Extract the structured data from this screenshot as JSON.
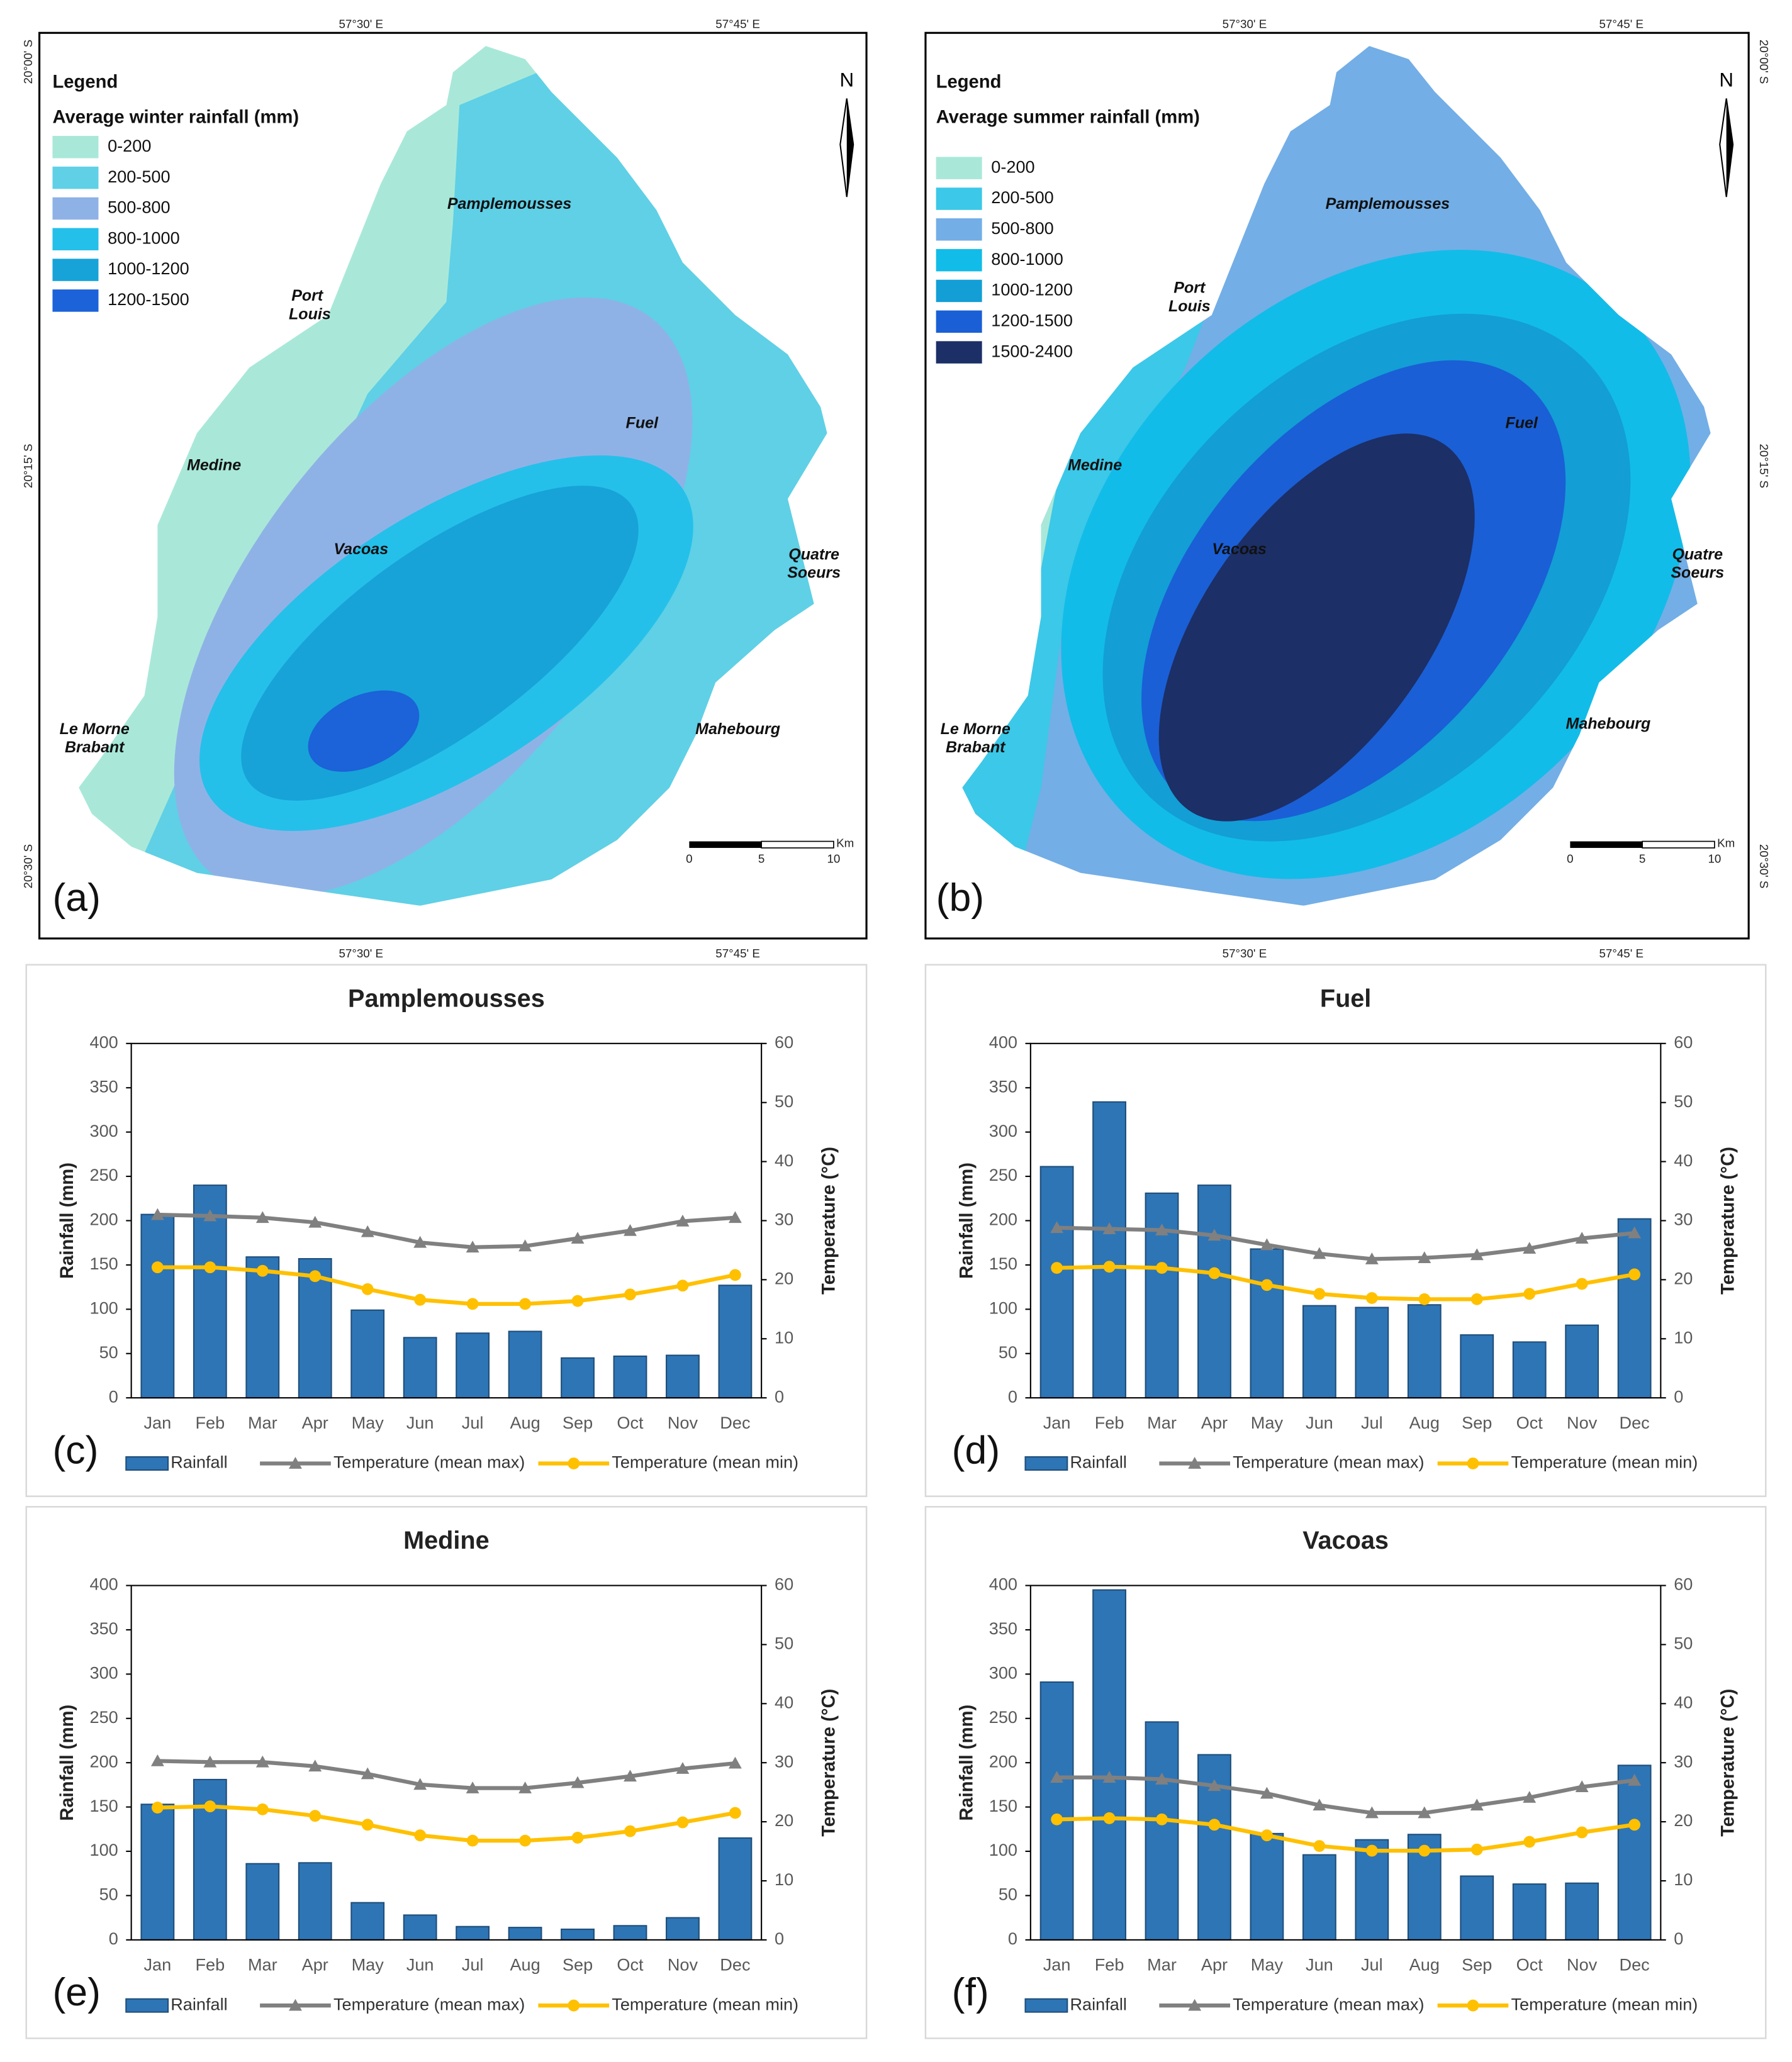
{
  "maps": [
    {
      "legend_title": "Legend",
      "legend_subtitle": "Average winter rainfall (mm)",
      "legend": [
        {
          "label": "0-200",
          "color": "#a9e8d8"
        },
        {
          "label": "200-500",
          "color": "#5fd0e6"
        },
        {
          "label": "500-800",
          "color": "#8fb2e6"
        },
        {
          "label": "800-1000",
          "color": "#24c0ea"
        },
        {
          "label": "1000-1200",
          "color": "#17a3d8"
        },
        {
          "label": "1200-1500",
          "color": "#1c62d8"
        }
      ],
      "places": [
        {
          "lines": [
            "Pamplemousses"
          ]
        },
        {
          "lines": [
            "Port",
            "Louis"
          ]
        },
        {
          "lines": [
            "Fuel"
          ]
        },
        {
          "lines": [
            "Medine"
          ]
        },
        {
          "lines": [
            "Vacoas"
          ]
        },
        {
          "lines": [
            "Quatre",
            "Soeurs"
          ]
        },
        {
          "lines": [
            "Mahebourg"
          ]
        },
        {
          "lines": [
            "Le Morne",
            "Brabant"
          ]
        }
      ],
      "north": "N",
      "lon_labels": [
        "57°30' E",
        "57°45' E"
      ],
      "lat_labels": [
        "20°00' S",
        "20°15' S",
        "20°30' S"
      ],
      "scale_ticks": [
        0,
        5,
        10
      ],
      "scale_unit": "Km",
      "panel_label": "(a)"
    },
    {
      "legend_title": "Legend",
      "legend_subtitle": "Average summer rainfall (mm)",
      "legend": [
        {
          "label": "0-200",
          "color": "#a9e8d8"
        },
        {
          "label": "200-500",
          "color": "#3cc8e8"
        },
        {
          "label": "500-800",
          "color": "#73aee6"
        },
        {
          "label": "800-1000",
          "color": "#12bce8"
        },
        {
          "label": "1000-1200",
          "color": "#139ed6"
        },
        {
          "label": "1200-1500",
          "color": "#1a5fd6"
        },
        {
          "label": "1500-2400",
          "color": "#1c2f66"
        }
      ],
      "places": [
        {
          "lines": [
            "Pamplemousses"
          ]
        },
        {
          "lines": [
            "Port",
            "Louis"
          ]
        },
        {
          "lines": [
            "Fuel"
          ]
        },
        {
          "lines": [
            "Medine"
          ]
        },
        {
          "lines": [
            "Vacoas"
          ]
        },
        {
          "lines": [
            "Quatre",
            "Soeurs"
          ]
        },
        {
          "lines": [
            "Mahebourg"
          ]
        },
        {
          "lines": [
            "Le Morne",
            "Brabant"
          ]
        }
      ],
      "north": "N",
      "lon_labels": [
        "57°30' E",
        "57°45' E"
      ],
      "lat_labels": [
        "20°00' S",
        "20°15' S",
        "20°30' S"
      ],
      "scale_ticks": [
        0,
        5,
        10
      ],
      "scale_unit": "Km",
      "panel_label": "(b)"
    }
  ],
  "chart_data": [
    {
      "type": "bar",
      "title": "Pamplemousses",
      "panel_label": "(c)",
      "y_label": "Rainfall (mm)",
      "y2_label": "Temperature (°C)",
      "categories": [
        "Jan",
        "Feb",
        "Mar",
        "Apr",
        "May",
        "Jun",
        "Jul",
        "Aug",
        "Sep",
        "Oct",
        "Nov",
        "Dec"
      ],
      "ylim": [
        0,
        400
      ],
      "yticks": [
        0,
        50,
        100,
        150,
        200,
        250,
        300,
        350,
        400
      ],
      "y2lim": [
        0,
        60
      ],
      "y2ticks": [
        0,
        10,
        20,
        30,
        40,
        50,
        60
      ],
      "series": [
        {
          "name": "Rainfall",
          "type": "bar",
          "color": "#2e75b6",
          "values": [
            207,
            240,
            159,
            157,
            99,
            68,
            73,
            75,
            45,
            47,
            48,
            127
          ]
        },
        {
          "name": "Temperature (mean max)",
          "type": "line",
          "axis": "y2",
          "marker": "triangle",
          "color": "#808080",
          "values": [
            31.0,
            30.8,
            30.5,
            29.7,
            28.1,
            26.3,
            25.5,
            25.7,
            27.0,
            28.3,
            29.9,
            30.5
          ]
        },
        {
          "name": "Temperature (mean min)",
          "type": "line",
          "axis": "y2",
          "marker": "circle",
          "color": "#ffc000",
          "values": [
            22.1,
            22.1,
            21.5,
            20.6,
            18.4,
            16.6,
            15.9,
            15.9,
            16.4,
            17.5,
            19.0,
            20.8
          ]
        }
      ]
    },
    {
      "type": "bar",
      "title": "Fuel",
      "panel_label": "(d)",
      "y_label": "Rainfall (mm)",
      "y2_label": "Temperature (°C)",
      "categories": [
        "Jan",
        "Feb",
        "Mar",
        "Apr",
        "May",
        "Jun",
        "Jul",
        "Aug",
        "Sep",
        "Oct",
        "Nov",
        "Dec"
      ],
      "ylim": [
        0,
        400
      ],
      "yticks": [
        0,
        50,
        100,
        150,
        200,
        250,
        300,
        350,
        400
      ],
      "y2lim": [
        0,
        60
      ],
      "y2ticks": [
        0,
        10,
        20,
        30,
        40,
        50,
        60
      ],
      "series": [
        {
          "name": "Rainfall",
          "type": "bar",
          "color": "#2e75b6",
          "values": [
            261,
            334,
            231,
            240,
            168,
            104,
            102,
            105,
            71,
            63,
            82,
            202
          ]
        },
        {
          "name": "Temperature (mean max)",
          "type": "line",
          "axis": "y2",
          "marker": "triangle",
          "color": "#808080",
          "values": [
            28.8,
            28.6,
            28.4,
            27.5,
            25.9,
            24.4,
            23.5,
            23.7,
            24.2,
            25.3,
            27.0,
            27.9
          ]
        },
        {
          "name": "Temperature (mean min)",
          "type": "line",
          "axis": "y2",
          "marker": "circle",
          "color": "#ffc000",
          "values": [
            22.0,
            22.2,
            22.0,
            21.1,
            19.1,
            17.6,
            16.9,
            16.7,
            16.7,
            17.6,
            19.3,
            20.9
          ]
        }
      ]
    },
    {
      "type": "bar",
      "title": "Medine",
      "panel_label": "(e)",
      "y_label": "Rainfall (mm)",
      "y2_label": "Temperature (°C)",
      "categories": [
        "Jan",
        "Feb",
        "Mar",
        "Apr",
        "May",
        "Jun",
        "Jul",
        "Aug",
        "Sep",
        "Oct",
        "Nov",
        "Dec"
      ],
      "ylim": [
        0,
        400
      ],
      "yticks": [
        0,
        50,
        100,
        150,
        200,
        250,
        300,
        350,
        400
      ],
      "y2lim": [
        0,
        60
      ],
      "y2ticks": [
        0,
        10,
        20,
        30,
        40,
        50,
        60
      ],
      "series": [
        {
          "name": "Rainfall",
          "type": "bar",
          "color": "#2e75b6",
          "values": [
            153,
            181,
            86,
            87,
            42,
            28,
            15,
            14,
            12,
            16,
            25,
            115
          ]
        },
        {
          "name": "Temperature (mean max)",
          "type": "line",
          "axis": "y2",
          "marker": "triangle",
          "color": "#808080",
          "values": [
            30.3,
            30.1,
            30.1,
            29.4,
            28.1,
            26.3,
            25.7,
            25.7,
            26.6,
            27.7,
            29.0,
            29.9
          ]
        },
        {
          "name": "Temperature (mean min)",
          "type": "line",
          "axis": "y2",
          "marker": "circle",
          "color": "#ffc000",
          "values": [
            22.4,
            22.6,
            22.1,
            21.0,
            19.5,
            17.7,
            16.8,
            16.8,
            17.3,
            18.4,
            19.9,
            21.5
          ]
        }
      ]
    },
    {
      "type": "bar",
      "title": "Vacoas",
      "panel_label": "(f)",
      "y_label": "Rainfall (mm)",
      "y2_label": "Temperature (°C)",
      "categories": [
        "Jan",
        "Feb",
        "Mar",
        "Apr",
        "May",
        "Jun",
        "Jul",
        "Aug",
        "Sep",
        "Oct",
        "Nov",
        "Dec"
      ],
      "ylim": [
        0,
        400
      ],
      "yticks": [
        0,
        50,
        100,
        150,
        200,
        250,
        300,
        350,
        400
      ],
      "y2lim": [
        0,
        60
      ],
      "y2ticks": [
        0,
        10,
        20,
        30,
        40,
        50,
        60
      ],
      "series": [
        {
          "name": "Rainfall",
          "type": "bar",
          "color": "#2e75b6",
          "values": [
            291,
            395,
            246,
            209,
            120,
            96,
            113,
            119,
            72,
            63,
            64,
            197
          ]
        },
        {
          "name": "Temperature (mean max)",
          "type": "line",
          "axis": "y2",
          "marker": "triangle",
          "color": "#808080",
          "values": [
            27.5,
            27.5,
            27.2,
            26.1,
            24.8,
            22.8,
            21.5,
            21.5,
            22.8,
            24.1,
            25.9,
            27.0
          ]
        },
        {
          "name": "Temperature (mean min)",
          "type": "line",
          "axis": "y2",
          "marker": "circle",
          "color": "#ffc000",
          "values": [
            20.4,
            20.6,
            20.4,
            19.5,
            17.7,
            15.9,
            15.1,
            15.1,
            15.3,
            16.6,
            18.2,
            19.5
          ]
        }
      ]
    }
  ]
}
